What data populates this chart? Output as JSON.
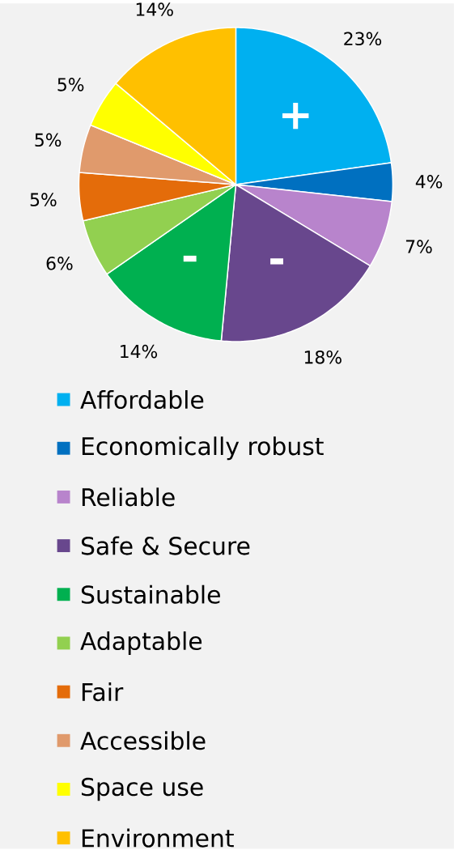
{
  "chart_data": {
    "type": "pie",
    "categories": [
      "Affordable",
      "Economically robust",
      "Reliable",
      "Safe & Secure",
      "Sustainable",
      "Adaptable",
      "Fair",
      "Accessible",
      "Space use",
      "Environment"
    ],
    "values": [
      23,
      4,
      7,
      18,
      14,
      6,
      5,
      5,
      5,
      14
    ],
    "value_labels": [
      "23%",
      "4%",
      "7%",
      "18%",
      "14%",
      "6%",
      "5%",
      "5%",
      "5%",
      "14%"
    ],
    "colors": [
      "#00b0f0",
      "#0070c0",
      "#b884cc",
      "#68478d",
      "#00b050",
      "#92d050",
      "#e46c0a",
      "#e09a6c",
      "#ffff00",
      "#ffc000"
    ],
    "annotations": [
      {
        "text": "+",
        "x": "Affordable"
      },
      {
        "text": "-",
        "x": "Safe & Secure"
      },
      {
        "text": "-",
        "x": "Sustainable"
      }
    ],
    "legend": "bottom"
  }
}
